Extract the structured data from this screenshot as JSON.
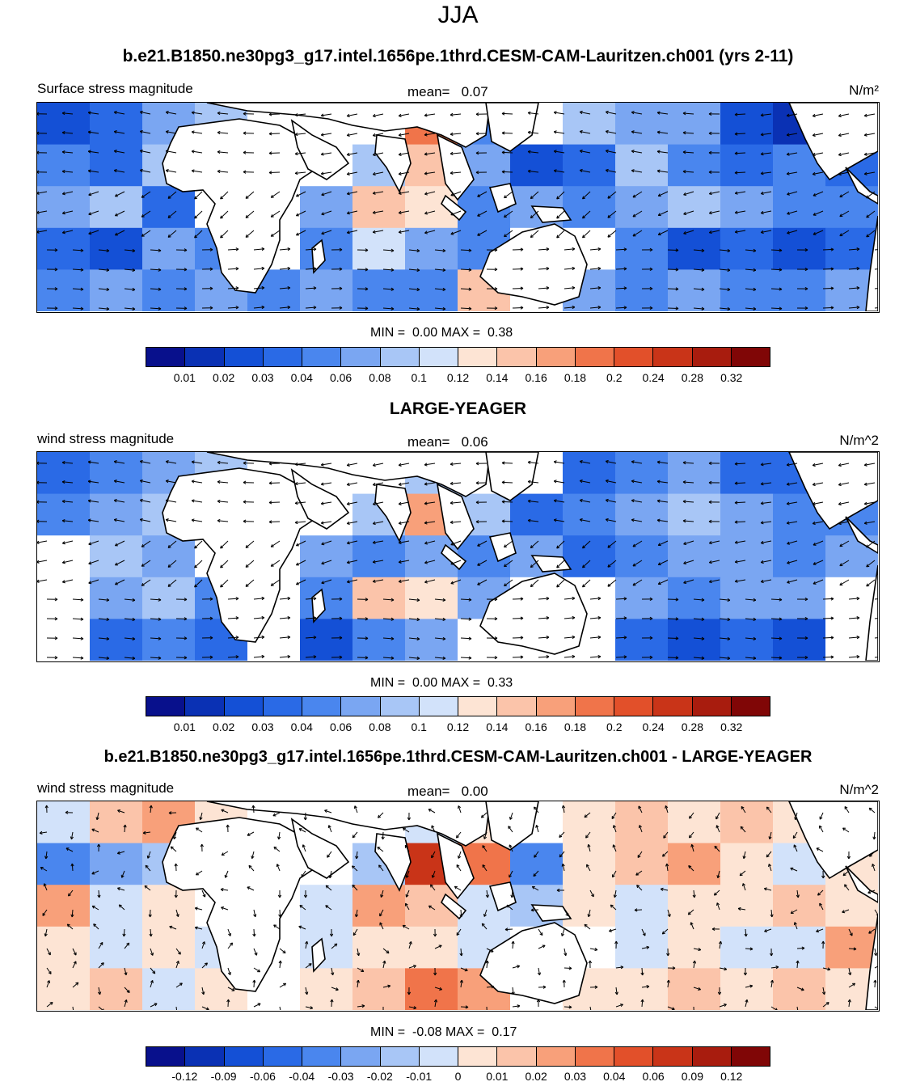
{
  "figure_title": "JJA",
  "chart_data": [
    {
      "type": "heatmap",
      "panel_title": "b.e21.B1850.ne30pg3_g17.intel.1656pe.1thrd.CESM-CAM-Lauritzen.ch001 (yrs 2-11)",
      "variable_label": "Surface stress magnitude",
      "mean_label": "mean=",
      "mean_value": "0.07",
      "units": "N/m²",
      "min_label": "MIN =",
      "min_value": "0.00",
      "max_label": "MAX =",
      "max_value": "0.38",
      "colorbar_levels": [
        "0.01",
        "0.02",
        "0.03",
        "0.04",
        "0.06",
        "0.08",
        "0.1",
        "0.12",
        "0.14",
        "0.16",
        "0.18",
        "0.2",
        "0.24",
        "0.28",
        "0.32"
      ],
      "colorbar_colors": [
        "#08108c",
        "#0a31b4",
        "#1450d6",
        "#2a6ae6",
        "#4a86ee",
        "#7aa6f2",
        "#a8c6f6",
        "#d2e2fa",
        "#fde4d4",
        "#fbc4aa",
        "#f8a07a",
        "#f0744a",
        "#e2502a",
        "#c93418",
        "#a81c0e",
        "#800606"
      ],
      "field": [
        [
          "#1450d6",
          "#2a6ae6",
          "#7aa6f2",
          "#a8c6f6",
          "#ffffff",
          "#ffffff",
          "#ffffff",
          "#f0744a",
          "#4a86ee",
          "#ffffff",
          "#a8c6f6",
          "#7aa6f2",
          "#7aa6f2",
          "#1450d6",
          "#0a31b4",
          "#ffffff"
        ],
        [
          "#4a86ee",
          "#2a6ae6",
          "#a8c6f6",
          "#ffffff",
          "#ffffff",
          "#ffffff",
          "#a8c6f6",
          "#fbc4aa",
          "#7aa6f2",
          "#1450d6",
          "#2a6ae6",
          "#a8c6f6",
          "#4a86ee",
          "#2a6ae6",
          "#4a86ee",
          "#2a6ae6"
        ],
        [
          "#7aa6f2",
          "#a8c6f6",
          "#2a6ae6",
          "#ffffff",
          "#ffffff",
          "#7aa6f2",
          "#fbc4aa",
          "#fde4d4",
          "#4a86ee",
          "#7aa6f2",
          "#4a86ee",
          "#7aa6f2",
          "#a8c6f6",
          "#7aa6f2",
          "#4a86ee",
          "#4a86ee"
        ],
        [
          "#2a6ae6",
          "#1450d6",
          "#7aa6f2",
          "#4a86ee",
          "#ffffff",
          "#4a86ee",
          "#d2e2fa",
          "#7aa6f2",
          "#4a86ee",
          "#ffffff",
          "#ffffff",
          "#4a86ee",
          "#1450d6",
          "#2a6ae6",
          "#1450d6",
          "#2a6ae6"
        ],
        [
          "#4a86ee",
          "#7aa6f2",
          "#4a86ee",
          "#7aa6f2",
          "#4a86ee",
          "#7aa6f2",
          "#4a86ee",
          "#4a86ee",
          "#fbc4aa",
          "#ffffff",
          "#7aa6f2",
          "#4a86ee",
          "#7aa6f2",
          "#4a86ee",
          "#4a86ee",
          "#7aa6f2"
        ]
      ]
    },
    {
      "type": "heatmap",
      "panel_title": "LARGE-YEAGER",
      "variable_label": "wind stress magnitude",
      "mean_label": "mean=",
      "mean_value": "0.06",
      "units": "N/m^2",
      "min_label": "MIN =",
      "min_value": "0.00",
      "max_label": "MAX =",
      "max_value": "0.33",
      "colorbar_levels": [
        "0.01",
        "0.02",
        "0.03",
        "0.04",
        "0.06",
        "0.08",
        "0.1",
        "0.12",
        "0.14",
        "0.16",
        "0.18",
        "0.2",
        "0.24",
        "0.28",
        "0.32"
      ],
      "colorbar_colors": [
        "#08108c",
        "#0a31b4",
        "#1450d6",
        "#2a6ae6",
        "#4a86ee",
        "#7aa6f2",
        "#a8c6f6",
        "#d2e2fa",
        "#fde4d4",
        "#fbc4aa",
        "#f8a07a",
        "#f0744a",
        "#e2502a",
        "#c93418",
        "#a81c0e",
        "#800606"
      ],
      "field": [
        [
          "#2a6ae6",
          "#4a86ee",
          "#7aa6f2",
          "#a8c6f6",
          "#ffffff",
          "#ffffff",
          "#ffffff",
          "#a8c6f6",
          "#ffffff",
          "#ffffff",
          "#2a6ae6",
          "#4a86ee",
          "#7aa6f2",
          "#2a6ae6",
          "#2a6ae6",
          "#ffffff"
        ],
        [
          "#4a86ee",
          "#7aa6f2",
          "#a8c6f6",
          "#ffffff",
          "#ffffff",
          "#ffffff",
          "#a8c6f6",
          "#f8a07a",
          "#a8c6f6",
          "#2a6ae6",
          "#4a86ee",
          "#7aa6f2",
          "#a8c6f6",
          "#7aa6f2",
          "#4a86ee",
          "#4a86ee"
        ],
        [
          "#ffffff",
          "#a8c6f6",
          "#7aa6f2",
          "#ffffff",
          "#ffffff",
          "#7aa6f2",
          "#4a86ee",
          "#7aa6f2",
          "#4a86ee",
          "#7aa6f2",
          "#2a6ae6",
          "#4a86ee",
          "#7aa6f2",
          "#7aa6f2",
          "#4a86ee",
          "#7aa6f2"
        ],
        [
          "#ffffff",
          "#7aa6f2",
          "#a8c6f6",
          "#4a86ee",
          "#ffffff",
          "#4a86ee",
          "#fbc4aa",
          "#fde4d4",
          "#7aa6f2",
          "#ffffff",
          "#ffffff",
          "#7aa6f2",
          "#4a86ee",
          "#7aa6f2",
          "#7aa6f2",
          "#ffffff"
        ],
        [
          "#ffffff",
          "#2a6ae6",
          "#4a86ee",
          "#2a6ae6",
          "#ffffff",
          "#1450d6",
          "#4a86ee",
          "#7aa6f2",
          "#ffffff",
          "#ffffff",
          "#ffffff",
          "#2a6ae6",
          "#1450d6",
          "#2a6ae6",
          "#1450d6",
          "#ffffff"
        ]
      ]
    },
    {
      "type": "heatmap",
      "panel_title": "b.e21.B1850.ne30pg3_g17.intel.1656pe.1thrd.CESM-CAM-Lauritzen.ch001 - LARGE-YEAGER",
      "variable_label": "wind stress magnitude",
      "mean_label": "mean=",
      "mean_value": "0.00",
      "units": "N/m^2",
      "min_label": "MIN =",
      "min_value": "-0.08",
      "max_label": "MAX =",
      "max_value": "0.17",
      "colorbar_levels": [
        "-0.12",
        "-0.09",
        "-0.06",
        "-0.04",
        "-0.03",
        "-0.02",
        "-0.01",
        "0",
        "0.01",
        "0.02",
        "0.03",
        "0.04",
        "0.06",
        "0.09",
        "0.12"
      ],
      "colorbar_colors": [
        "#08108c",
        "#0a31b4",
        "#1450d6",
        "#2a6ae6",
        "#4a86ee",
        "#7aa6f2",
        "#a8c6f6",
        "#d2e2fa",
        "#fde4d4",
        "#fbc4aa",
        "#f8a07a",
        "#f0744a",
        "#e2502a",
        "#c93418",
        "#a81c0e",
        "#800606"
      ],
      "field": [
        [
          "#d2e2fa",
          "#fbc4aa",
          "#f8a07a",
          "#fde4d4",
          "#ffffff",
          "#ffffff",
          "#ffffff",
          "#d2e2fa",
          "#fde4d4",
          "#ffffff",
          "#fde4d4",
          "#fbc4aa",
          "#fde4d4",
          "#fbc4aa",
          "#fde4d4",
          "#ffffff"
        ],
        [
          "#4a86ee",
          "#7aa6f2",
          "#a8c6f6",
          "#ffffff",
          "#ffffff",
          "#ffffff",
          "#a8c6f6",
          "#c93418",
          "#f0744a",
          "#4a86ee",
          "#fde4d4",
          "#fbc4aa",
          "#f8a07a",
          "#fde4d4",
          "#d2e2fa",
          "#fde4d4"
        ],
        [
          "#f8a07a",
          "#d2e2fa",
          "#fde4d4",
          "#ffffff",
          "#ffffff",
          "#d2e2fa",
          "#f8a07a",
          "#fbc4aa",
          "#d2e2fa",
          "#a8c6f6",
          "#fde4d4",
          "#d2e2fa",
          "#fde4d4",
          "#fde4d4",
          "#fbc4aa",
          "#fde4d4"
        ],
        [
          "#fde4d4",
          "#d2e2fa",
          "#fde4d4",
          "#d2e2fa",
          "#ffffff",
          "#d2e2fa",
          "#fde4d4",
          "#fde4d4",
          "#d2e2fa",
          "#ffffff",
          "#ffffff",
          "#d2e2fa",
          "#fde4d4",
          "#d2e2fa",
          "#d2e2fa",
          "#f8a07a"
        ],
        [
          "#fde4d4",
          "#fbc4aa",
          "#d2e2fa",
          "#fde4d4",
          "#ffffff",
          "#fde4d4",
          "#fbc4aa",
          "#f0744a",
          "#f8a07a",
          "#ffffff",
          "#fde4d4",
          "#fde4d4",
          "#fbc4aa",
          "#fde4d4",
          "#fbc4aa",
          "#fde4d4"
        ]
      ]
    }
  ]
}
